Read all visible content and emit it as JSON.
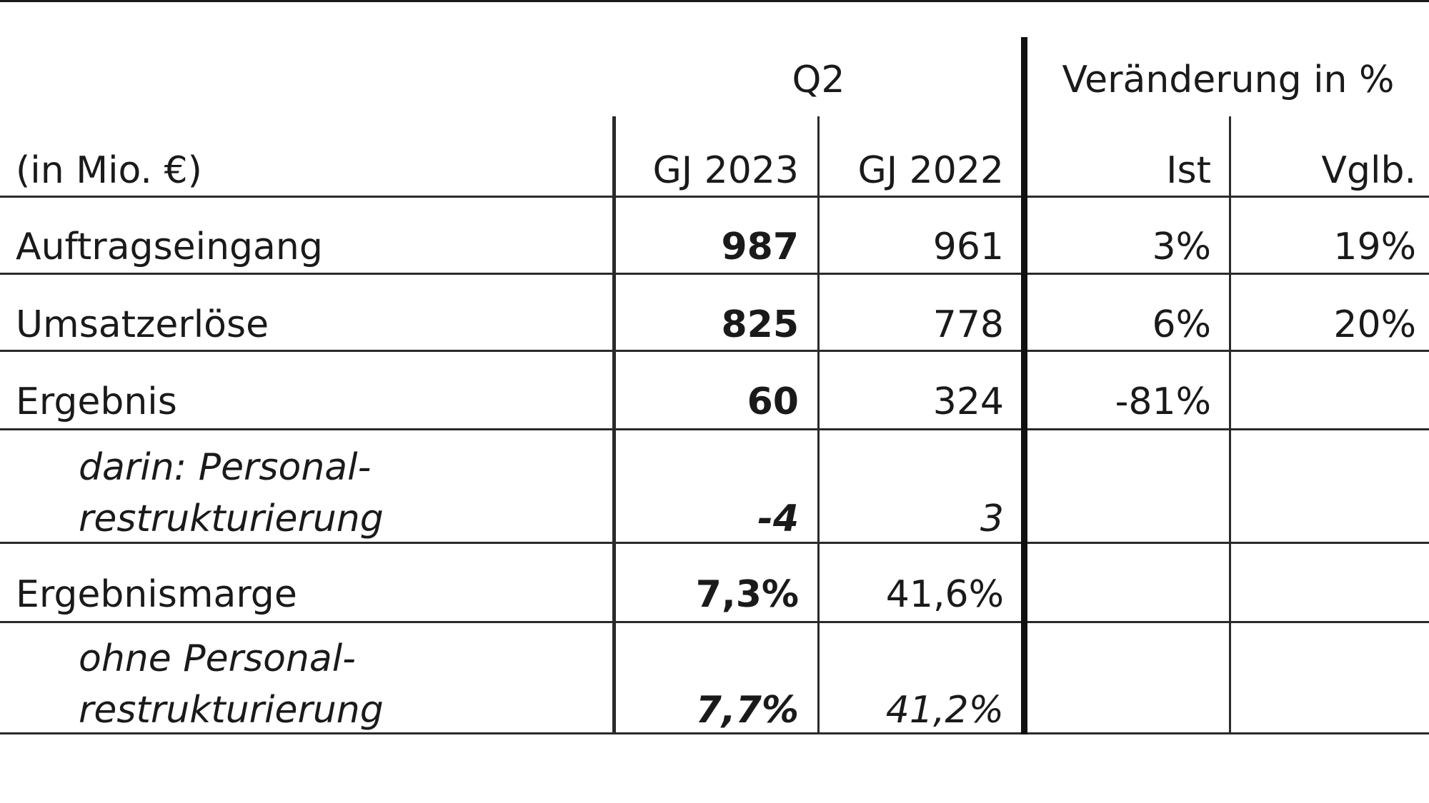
{
  "header": {
    "period": "Q2",
    "change_group": "Veränderung in %",
    "unit_label": "(in Mio. €)",
    "col_current": "GJ 2023",
    "col_prior": "GJ 2022",
    "col_actual": "Ist",
    "col_comparable": "Vglb."
  },
  "rows": [
    {
      "label_1": "Auftragseingang",
      "label_2": "",
      "gj2023": "987",
      "gj2022": "961",
      "ist": "3%",
      "vglb": "19%"
    },
    {
      "label_1": "Umsatzerlöse",
      "label_2": "",
      "gj2023": "825",
      "gj2022": "778",
      "ist": "6%",
      "vglb": "20%"
    },
    {
      "label_1": "Ergebnis",
      "label_2": "",
      "gj2023": "60",
      "gj2022": "324",
      "ist": "-81%",
      "vglb": ""
    },
    {
      "label_1": "darin: Personal-",
      "label_2": "restrukturierung",
      "gj2023": "-4",
      "gj2022": "3",
      "ist": "",
      "vglb": ""
    },
    {
      "label_1": "Ergebnismarge",
      "label_2": "",
      "gj2023": "7,3%",
      "gj2022": "41,6%",
      "ist": "",
      "vglb": ""
    },
    {
      "label_1": "ohne Personal-",
      "label_2": "restrukturierung",
      "gj2023": "7,7%",
      "gj2022": "41,2%",
      "ist": "",
      "vglb": ""
    }
  ]
}
